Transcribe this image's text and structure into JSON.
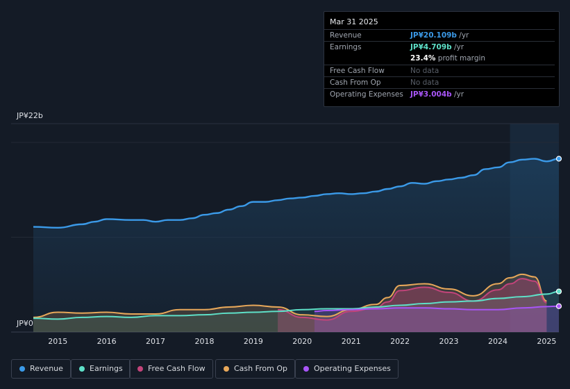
{
  "tooltip": {
    "date": "Mar 31 2025",
    "rows": [
      {
        "label": "Revenue",
        "value": "JP¥20.109b",
        "unit": " /yr",
        "color": "#3b9ae8"
      },
      {
        "label": "Earnings",
        "value": "JP¥4.709b",
        "unit": " /yr",
        "color": "#5ee0c8"
      },
      {
        "label": "",
        "value": "23.4%",
        "unit": " profit margin",
        "color": "#ffffff"
      },
      {
        "label": "Free Cash Flow",
        "value": "No data",
        "unit": "",
        "color": "#5a606a"
      },
      {
        "label": "Cash From Op",
        "value": "No data",
        "unit": "",
        "color": "#5a606a"
      },
      {
        "label": "Operating Expenses",
        "value": "JP¥3.004b",
        "unit": " /yr",
        "color": "#a855f7"
      }
    ]
  },
  "chart_data": {
    "type": "line",
    "title": "",
    "y_unit": "JP¥ billions",
    "ylim": [
      0,
      22
    ],
    "y_tick_labels": [
      "JP¥22b",
      "JP¥0"
    ],
    "xlim": [
      2014.5,
      2025.3
    ],
    "x_tick_labels": [
      "2015",
      "2016",
      "2017",
      "2018",
      "2019",
      "2020",
      "2021",
      "2022",
      "2023",
      "2024",
      "2025"
    ],
    "highlight_from": 2024.25,
    "series": [
      {
        "name": "Revenue",
        "color": "#3b9ae8",
        "fill": true,
        "x": [
          2014.5,
          2015.0,
          2015.5,
          2015.75,
          2016.0,
          2016.5,
          2016.75,
          2017.0,
          2017.25,
          2017.5,
          2017.75,
          2018.0,
          2018.25,
          2018.5,
          2018.75,
          2019.0,
          2019.25,
          2019.5,
          2019.75,
          2020.0,
          2020.25,
          2020.5,
          2020.75,
          2021.0,
          2021.25,
          2021.5,
          2021.75,
          2022.0,
          2022.25,
          2022.5,
          2022.75,
          2023.0,
          2023.25,
          2023.5,
          2023.75,
          2024.0,
          2024.25,
          2024.5,
          2024.75,
          2025.0,
          2025.25
        ],
        "values": [
          12.2,
          12.1,
          12.5,
          12.8,
          13.1,
          13.0,
          13.0,
          12.8,
          13.0,
          13.0,
          13.2,
          13.6,
          13.8,
          14.2,
          14.6,
          15.1,
          15.1,
          15.3,
          15.5,
          15.6,
          15.8,
          16.0,
          16.1,
          16.0,
          16.1,
          16.3,
          16.6,
          16.9,
          17.3,
          17.2,
          17.5,
          17.7,
          17.9,
          18.2,
          18.9,
          19.1,
          19.7,
          20.0,
          20.1,
          19.8,
          20.109
        ]
      },
      {
        "name": "Earnings",
        "color": "#5ee0c8",
        "fill": true,
        "x": [
          2014.5,
          2015.0,
          2015.5,
          2016.0,
          2016.5,
          2017.0,
          2017.5,
          2018.0,
          2018.5,
          2019.0,
          2019.5,
          2020.0,
          2020.5,
          2021.0,
          2021.5,
          2022.0,
          2022.5,
          2023.0,
          2023.5,
          2024.0,
          2024.5,
          2025.0,
          2025.25
        ],
        "values": [
          1.6,
          1.5,
          1.7,
          1.8,
          1.7,
          1.9,
          1.9,
          2.0,
          2.2,
          2.3,
          2.4,
          2.6,
          2.7,
          2.7,
          2.9,
          3.1,
          3.3,
          3.5,
          3.6,
          3.9,
          4.1,
          4.4,
          4.709
        ]
      },
      {
        "name": "Free Cash Flow",
        "color": "#c2447a",
        "fill": true,
        "x": [
          2019.5,
          2020.0,
          2020.5,
          2021.0,
          2021.5,
          2021.75,
          2022.0,
          2022.5,
          2023.0,
          2023.5,
          2024.0,
          2024.25,
          2024.5,
          2024.75,
          2025.0
        ],
        "values": [
          2.6,
          1.7,
          1.4,
          2.4,
          2.8,
          3.5,
          4.8,
          5.2,
          4.6,
          3.6,
          4.9,
          5.6,
          6.2,
          5.9,
          3.4
        ]
      },
      {
        "name": "Cash From Op",
        "color": "#e8a85a",
        "fill": true,
        "x": [
          2014.5,
          2015.0,
          2015.5,
          2016.0,
          2016.5,
          2017.0,
          2017.5,
          2018.0,
          2018.5,
          2019.0,
          2019.5,
          2020.0,
          2020.5,
          2021.0,
          2021.5,
          2021.75,
          2022.0,
          2022.5,
          2023.0,
          2023.5,
          2024.0,
          2024.25,
          2024.5,
          2024.75,
          2025.0
        ],
        "values": [
          1.7,
          2.3,
          2.2,
          2.3,
          2.1,
          2.1,
          2.6,
          2.6,
          2.9,
          3.1,
          2.9,
          2.0,
          1.8,
          2.6,
          3.2,
          4.0,
          5.4,
          5.6,
          5.0,
          4.2,
          5.6,
          6.3,
          6.7,
          6.4,
          3.6
        ]
      },
      {
        "name": "Operating Expenses",
        "color": "#a855f7",
        "fill": true,
        "x": [
          2020.25,
          2020.5,
          2021.0,
          2021.5,
          2022.0,
          2022.5,
          2023.0,
          2023.5,
          2024.0,
          2024.5,
          2025.0,
          2025.25
        ],
        "values": [
          2.4,
          2.5,
          2.6,
          2.7,
          2.8,
          2.8,
          2.7,
          2.6,
          2.6,
          2.8,
          2.95,
          3.004
        ]
      }
    ]
  },
  "legend": [
    {
      "label": "Revenue",
      "color": "#3b9ae8"
    },
    {
      "label": "Earnings",
      "color": "#5ee0c8"
    },
    {
      "label": "Free Cash Flow",
      "color": "#c2447a"
    },
    {
      "label": "Cash From Op",
      "color": "#e8a85a"
    },
    {
      "label": "Operating Expenses",
      "color": "#a855f7"
    }
  ]
}
